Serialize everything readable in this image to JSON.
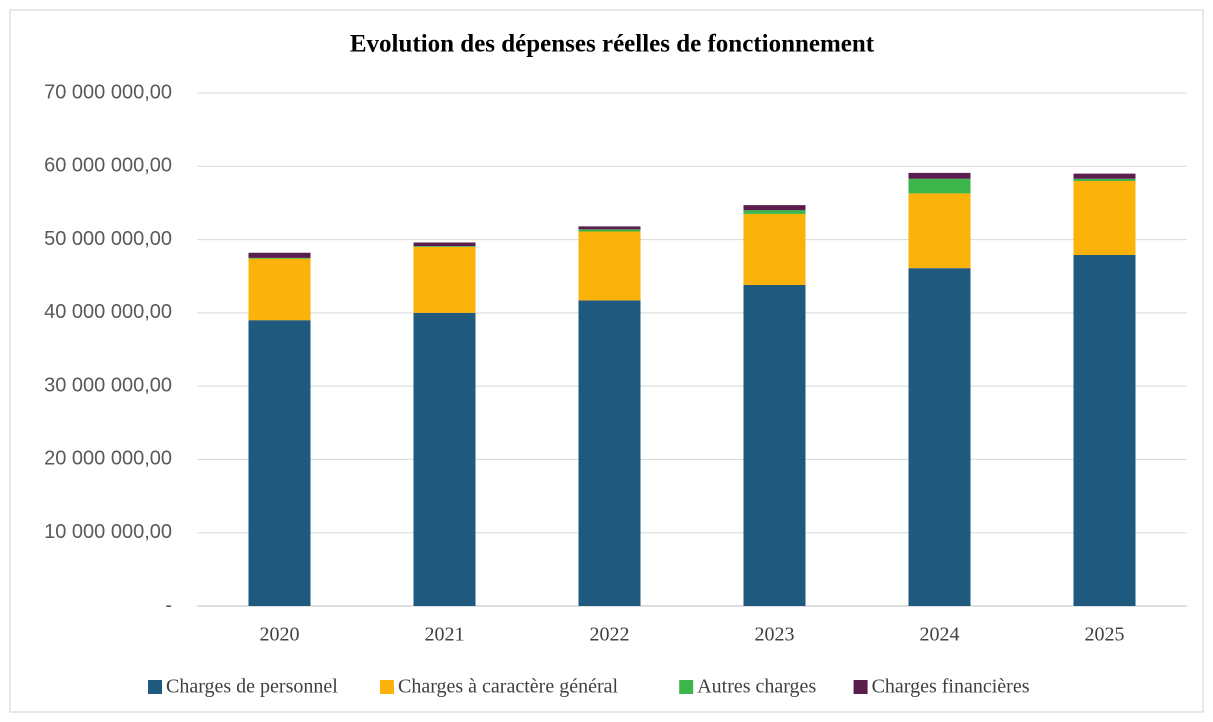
{
  "chart_data": {
    "type": "stacked_bar",
    "title": "Evolution des dépenses réelles de fonctionnement",
    "categories": [
      "2020",
      "2021",
      "2022",
      "2023",
      "2024",
      "2025"
    ],
    "series": [
      {
        "name": "Charges de personnel",
        "color": "#1f5a7e",
        "values": [
          39000000,
          40000000,
          41700000,
          43800000,
          46100000,
          47900000
        ]
      },
      {
        "name": "Charges à caractère général",
        "color": "#fbb20a",
        "values": [
          8400000,
          9000000,
          9400000,
          9700000,
          10200000,
          10100000
        ]
      },
      {
        "name": "Autres charges",
        "color": "#3cb54a",
        "values": [
          100000,
          100000,
          300000,
          500000,
          2000000,
          300000
        ]
      },
      {
        "name": "Charges financières",
        "color": "#5a1e4d",
        "values": [
          700000,
          500000,
          400000,
          700000,
          800000,
          700000
        ]
      }
    ],
    "ylim": [
      0,
      70000000
    ],
    "yticks": [
      {
        "value": 0,
        "label": "-"
      },
      {
        "value": 10000000,
        "label": "10 000 000,00"
      },
      {
        "value": 20000000,
        "label": "20 000 000,00"
      },
      {
        "value": 30000000,
        "label": "30 000 000,00"
      },
      {
        "value": 40000000,
        "label": "40 000 000,00"
      },
      {
        "value": 50000000,
        "label": "50 000 000,00"
      },
      {
        "value": 60000000,
        "label": "60 000 000,00"
      },
      {
        "value": 70000000,
        "label": "70 000 000,00"
      }
    ],
    "grid": true,
    "legend": "bottom"
  }
}
